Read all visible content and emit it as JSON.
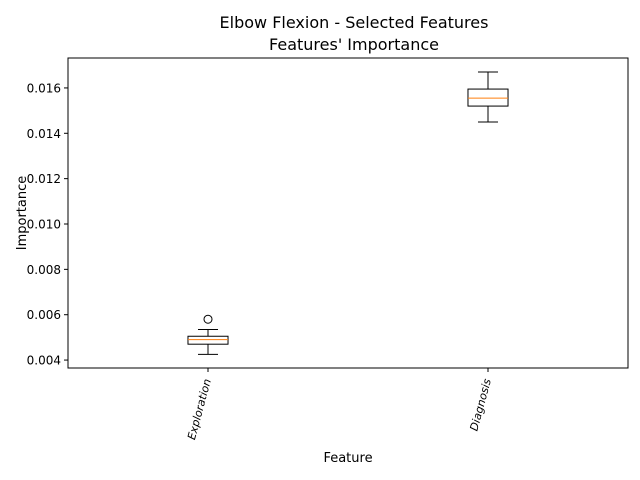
{
  "chart_data": {
    "type": "box",
    "title_lines": [
      "Elbow Flexion - Selected Features",
      "Features' Importance"
    ],
    "xlabel": "Feature",
    "ylabel": "Importance",
    "ylim": [
      0.00365,
      0.01732
    ],
    "yticks": [
      0.004,
      0.006,
      0.008,
      0.01,
      0.012,
      0.014,
      0.016
    ],
    "ytick_labels": [
      "0.004",
      "0.006",
      "0.008",
      "0.010",
      "0.012",
      "0.014",
      "0.016"
    ],
    "grid": false,
    "categories": [
      "Exploration",
      "Diagnosis"
    ],
    "boxes": [
      {
        "whisker_low": 0.00425,
        "q1": 0.0047,
        "median": 0.0049,
        "q3": 0.00505,
        "whisker_high": 0.00535,
        "outliers": [
          0.0058
        ]
      },
      {
        "whisker_low": 0.0145,
        "q1": 0.0152,
        "median": 0.01555,
        "q3": 0.01595,
        "whisker_high": 0.0167,
        "outliers": []
      }
    ],
    "colors": {
      "box": "#000000",
      "median": "#ff7f0e"
    }
  }
}
